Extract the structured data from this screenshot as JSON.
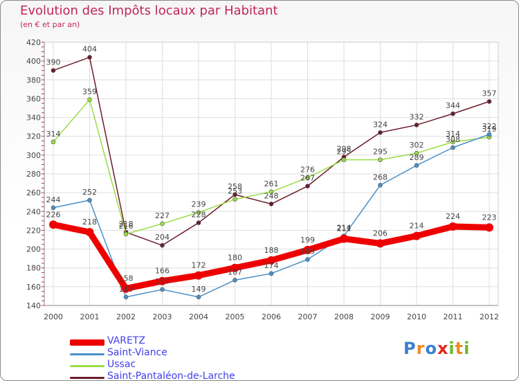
{
  "chart_data": {
    "type": "line",
    "title": "Evolution des Impôts locaux par Habitant",
    "subtitle": "(en € et par an)",
    "xlabel": "",
    "ylabel": "",
    "x": [
      "2000",
      "2001",
      "2002",
      "2003",
      "2004",
      "2005",
      "2006",
      "2007",
      "2008",
      "2009",
      "2010",
      "2011",
      "2012"
    ],
    "ylim": [
      140,
      420
    ],
    "yticks": [
      "140",
      "160",
      "180",
      "200",
      "220",
      "240",
      "260",
      "280",
      "300",
      "320",
      "340",
      "360",
      "380",
      "400",
      "420"
    ],
    "grid": true,
    "legend_position": "bottom-left",
    "series": [
      {
        "name": "Saint-Pantaléon-de-Larche",
        "color": "#6b1c2c",
        "values": [
          390,
          404,
          218,
          204,
          228,
          258,
          248,
          267,
          298,
          324,
          332,
          344,
          357
        ]
      },
      {
        "name": "Ussac",
        "color": "#99dd44",
        "values": [
          314,
          359,
          216,
          227,
          239,
          253,
          261,
          276,
          295,
          295,
          302,
          314,
          319
        ]
      },
      {
        "name": "Saint-Viance",
        "color": "#4a90c8",
        "values": [
          244,
          252,
          149,
          157,
          149,
          167,
          174,
          189,
          214,
          268,
          289,
          308,
          322
        ]
      },
      {
        "name": "VARETZ",
        "color": "#ee0000",
        "values": [
          226,
          218,
          158,
          166,
          172,
          180,
          188,
          199,
          211,
          206,
          214,
          224,
          223
        ]
      }
    ],
    "labels": [
      {
        "series": "Saint-Pantaléon-de-Larche",
        "text": [
          "390",
          "404",
          "218",
          "204",
          "228",
          "258",
          "248",
          "267",
          "298",
          "324",
          "332",
          "344",
          "357"
        ]
      },
      {
        "series": "Ussac",
        "text": [
          "314",
          "359",
          "216",
          "227",
          "239",
          "253",
          "261",
          "276",
          "295",
          "295",
          "302",
          "314",
          "319"
        ]
      },
      {
        "series": "Saint-Viance",
        "text": [
          "244",
          "252",
          "149",
          "157",
          "149",
          "167",
          "174",
          "189",
          "214",
          "268",
          "289",
          "308",
          "322"
        ]
      },
      {
        "series": "VARETZ",
        "text": [
          "226",
          "218",
          "158",
          "166",
          "172",
          "180",
          "188",
          "199",
          "211",
          "206",
          "214",
          "224",
          "223"
        ]
      }
    ]
  },
  "legend": [
    {
      "label": "VARETZ",
      "color": "#ee0000",
      "weight": "thick"
    },
    {
      "label": "Saint-Viance",
      "color": "#4a90c8",
      "weight": "thin"
    },
    {
      "label": "Ussac",
      "color": "#99dd44",
      "weight": "thin"
    },
    {
      "label": "Saint-Pantaléon-de-Larche",
      "color": "#6b1c2c",
      "weight": "thin"
    }
  ],
  "logo": {
    "letters": [
      "P",
      "r",
      "o",
      "x",
      "i",
      "t",
      "i"
    ],
    "colors": [
      "#3a7fd0",
      "#f08a1e",
      "#3a7fd0",
      "#e0251e",
      "#6ab82e",
      "#f08a1e",
      "#6ab82e"
    ]
  }
}
